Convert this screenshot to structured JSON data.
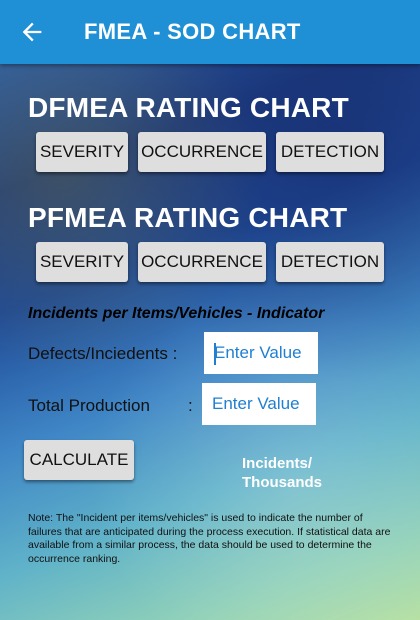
{
  "appbar": {
    "title": "FMEA - SOD CHART",
    "back_icon": "arrow-left-icon",
    "color": "#1f8fd6"
  },
  "dfmea": {
    "heading": "DFMEA RATING CHART",
    "buttons": [
      "SEVERITY",
      "OCCURRENCE",
      "DETECTION"
    ]
  },
  "pfmea": {
    "heading": "PFMEA RATING CHART",
    "buttons": [
      "SEVERITY",
      "OCCURRENCE",
      "DETECTION"
    ]
  },
  "indicator": {
    "title": "Incidents per Items/Vehicles - Indicator",
    "defects_label": "Defects/Inciedents :",
    "defects_placeholder": "Enter Value",
    "production_label": "Total Production",
    "production_colon": ":",
    "production_placeholder": "Enter Value",
    "calculate_label": "CALCULATE",
    "result_unit_line1": "Incidents/",
    "result_unit_line2": "Thousands"
  },
  "note": "Note: The \"Incident per items/vehicles\" is used to indicate the number of failures that are anticipated during the process execution. If statistical data are available from a similar process, the data should be used to determine the occurrence ranking."
}
